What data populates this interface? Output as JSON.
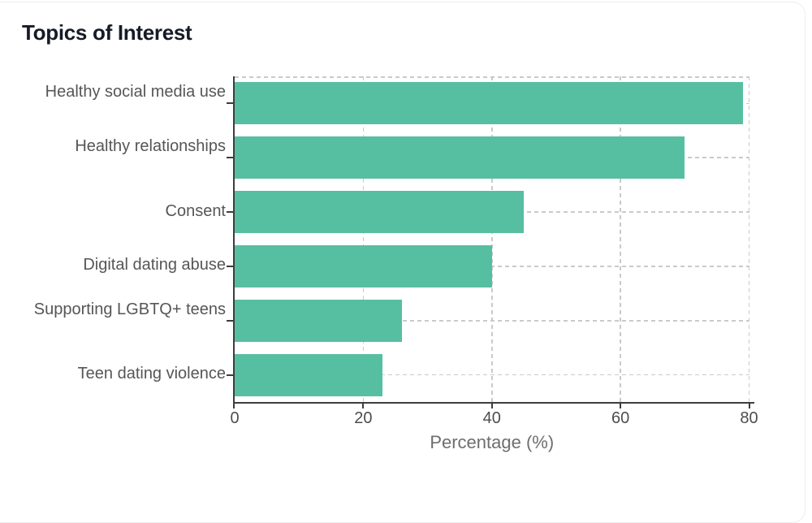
{
  "card": {
    "title": "Topics of Interest"
  },
  "chart_data": {
    "type": "bar",
    "orientation": "horizontal",
    "title": "Topics of Interest",
    "categories": [
      "Healthy social media use",
      "Healthy relationships",
      "Consent",
      "Digital dating abuse",
      "Supporting LGBTQ+ teens",
      "Teen dating violence"
    ],
    "values": [
      79,
      70,
      45,
      40,
      26,
      23
    ],
    "label_lines": [
      [
        "Healthy social media",
        "use"
      ],
      [
        "Healthy",
        "relationships"
      ],
      [
        "Consent"
      ],
      [
        "Digital dating abuse"
      ],
      [
        "Supporting LGBTQ+",
        "teens"
      ],
      [
        "Teen dating violence"
      ]
    ],
    "xlabel": "Percentage (%)",
    "ylabel": "",
    "xlim": [
      0,
      80
    ],
    "xticks": [
      "0",
      "20",
      "40",
      "60",
      "80"
    ],
    "grid": "dashed vertical at x ticks and dashed horizontal at category centers, drawn under bars",
    "legend": "none",
    "bar_color": "#57bfa1"
  },
  "colors": {
    "bar": "#57bfa1",
    "spine": "#3d3d3d",
    "grid": "#cacaca",
    "title": "#161b26",
    "category_label": "#565656",
    "tick_label": "#4d4d4d",
    "axis_title": "#6e6e6e",
    "card_border": "#ededed",
    "background": "#ffffff"
  }
}
